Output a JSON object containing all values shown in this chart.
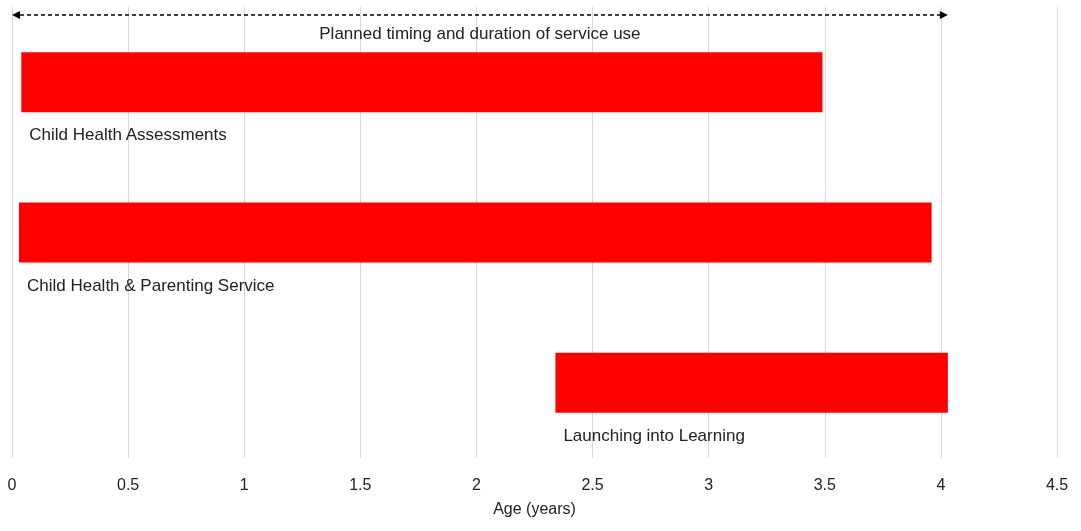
{
  "chart_data": {
    "type": "bar",
    "orientation": "horizontal",
    "categories": [
      "Child Health Assessments",
      "Child Health & Parenting Service",
      "Launching into Learning"
    ],
    "base": [
      0.04,
      0.03,
      2.34
    ],
    "values": [
      3.45,
      3.93,
      1.69
    ],
    "color": "#ff0000",
    "xlim": [
      0,
      4.5
    ],
    "xticks": [
      0,
      0.5,
      1,
      1.5,
      2,
      2.5,
      3,
      3.5,
      4,
      4.5
    ],
    "xlabel": "Age (years)",
    "annotations": [
      "Planned timing and duration of service use"
    ],
    "grid": "x",
    "tick_labels": "x"
  }
}
